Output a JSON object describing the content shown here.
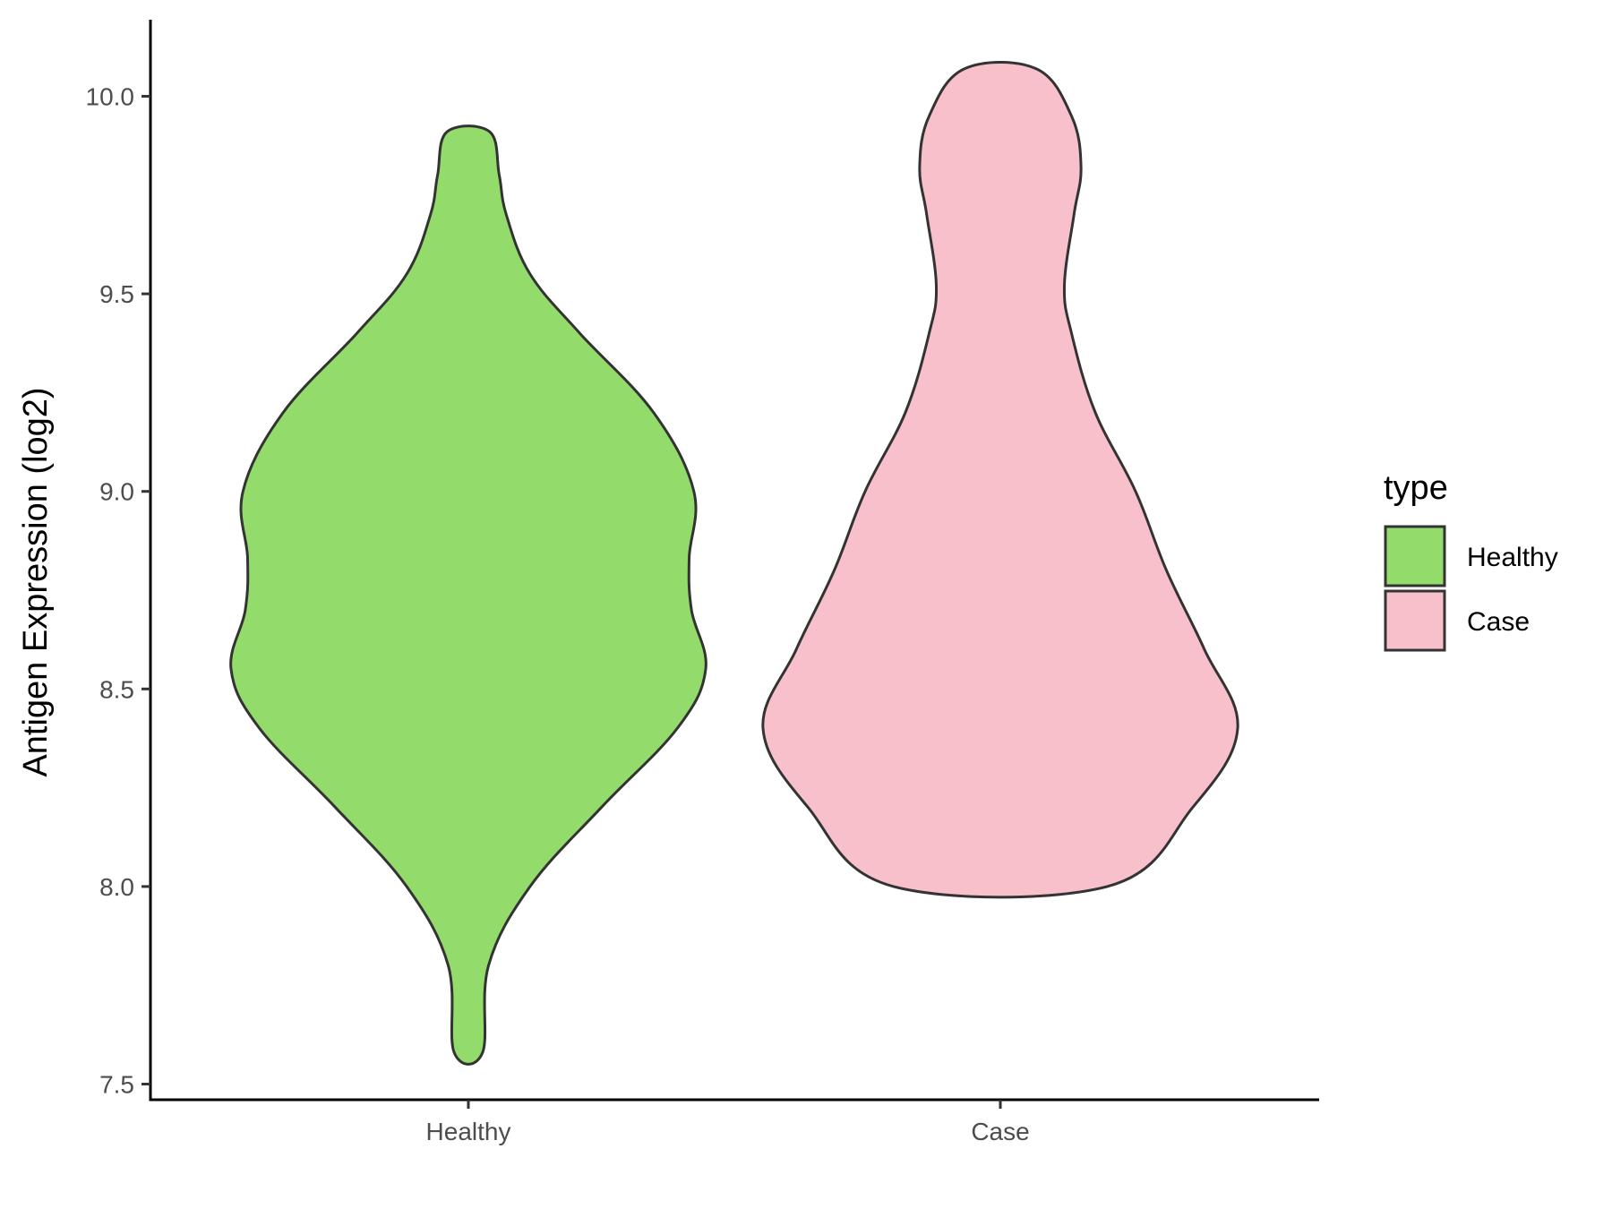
{
  "chart_data": {
    "type": "violin",
    "xlabel": "",
    "ylabel": "Antigen Expression (log2)",
    "ylim": [
      7.5,
      10.2
    ],
    "yticks": [
      "7.5",
      "8.0",
      "8.5",
      "9.0",
      "9.5",
      "10.0"
    ],
    "categories": [
      "Healthy",
      "Case"
    ],
    "grid": false,
    "legend": {
      "title": "type",
      "placement": "right"
    },
    "series": [
      {
        "name": "Healthy",
        "color": "#93DC6B",
        "min": 7.58,
        "max": 9.91,
        "density_profile": [
          [
            7.58,
            0.06
          ],
          [
            7.8,
            0.085
          ],
          [
            8.0,
            0.26
          ],
          [
            8.2,
            0.56
          ],
          [
            8.4,
            0.88
          ],
          [
            8.55,
            1.0
          ],
          [
            8.7,
            0.94
          ],
          [
            8.83,
            0.93
          ],
          [
            9.0,
            0.95
          ],
          [
            9.2,
            0.78
          ],
          [
            9.4,
            0.47
          ],
          [
            9.55,
            0.26
          ],
          [
            9.7,
            0.16
          ],
          [
            9.8,
            0.13
          ],
          [
            9.91,
            0.09
          ]
        ]
      },
      {
        "name": "Case",
        "color": "#F8C0CB",
        "min": 8.0,
        "max": 10.07,
        "density_profile": [
          [
            8.0,
            0.45
          ],
          [
            8.2,
            0.81
          ],
          [
            8.4,
            1.0
          ],
          [
            8.6,
            0.86
          ],
          [
            8.8,
            0.7
          ],
          [
            9.0,
            0.57
          ],
          [
            9.2,
            0.4
          ],
          [
            9.4,
            0.3
          ],
          [
            9.52,
            0.27
          ],
          [
            9.7,
            0.31
          ],
          [
            9.82,
            0.34
          ],
          [
            9.95,
            0.3
          ],
          [
            10.07,
            0.15
          ]
        ]
      }
    ]
  }
}
